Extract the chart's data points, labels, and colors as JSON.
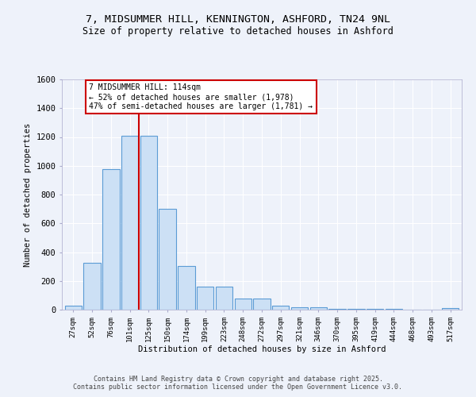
{
  "title_line1": "7, MIDSUMMER HILL, KENNINGTON, ASHFORD, TN24 9NL",
  "title_line2": "Size of property relative to detached houses in Ashford",
  "xlabel": "Distribution of detached houses by size in Ashford",
  "ylabel": "Number of detached properties",
  "bar_labels": [
    "27sqm",
    "52sqm",
    "76sqm",
    "101sqm",
    "125sqm",
    "150sqm",
    "174sqm",
    "199sqm",
    "223sqm",
    "248sqm",
    "272sqm",
    "297sqm",
    "321sqm",
    "346sqm",
    "370sqm",
    "395sqm",
    "419sqm",
    "444sqm",
    "468sqm",
    "493sqm",
    "517sqm"
  ],
  "bar_heights": [
    25,
    325,
    975,
    1210,
    1210,
    700,
    305,
    160,
    160,
    75,
    75,
    25,
    15,
    15,
    5,
    5,
    5,
    5,
    2,
    2,
    10
  ],
  "bar_color": "#cce0f5",
  "bar_edge_color": "#5b9bd5",
  "vline_x": 3.5,
  "vline_color": "#cc0000",
  "annotation_text": "7 MIDSUMMER HILL: 114sqm\n← 52% of detached houses are smaller (1,978)\n47% of semi-detached houses are larger (1,781) →",
  "annotation_box_color": "#ffffff",
  "annotation_box_edge": "#cc0000",
  "ylim": [
    0,
    1600
  ],
  "yticks": [
    0,
    200,
    400,
    600,
    800,
    1000,
    1200,
    1400,
    1600
  ],
  "background_color": "#eef2fa",
  "grid_color": "#ffffff",
  "footer_line1": "Contains HM Land Registry data © Crown copyright and database right 2025.",
  "footer_line2": "Contains public sector information licensed under the Open Government Licence v3.0."
}
